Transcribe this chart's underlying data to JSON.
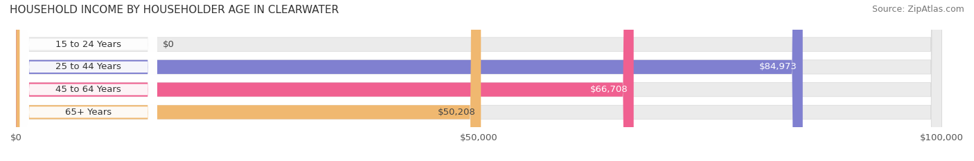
{
  "title": "HOUSEHOLD INCOME BY HOUSEHOLDER AGE IN CLEARWATER",
  "source_text": "Source: ZipAtlas.com",
  "categories": [
    "15 to 24 Years",
    "25 to 44 Years",
    "45 to 64 Years",
    "65+ Years"
  ],
  "values": [
    0,
    84973,
    66708,
    50208
  ],
  "bar_colors": [
    "#5ecfca",
    "#8080d0",
    "#f06090",
    "#f0b870"
  ],
  "label_colors": [
    "#444444",
    "#ffffff",
    "#ffffff",
    "#444444"
  ],
  "bar_background": "#ebebeb",
  "bar_bg_edge": "#d8d8d8",
  "xlim": [
    0,
    100000
  ],
  "xticks": [
    0,
    50000,
    100000
  ],
  "xtick_labels": [
    "$0",
    "$50,000",
    "$100,000"
  ],
  "figsize": [
    14.06,
    2.33
  ],
  "dpi": 100,
  "title_fontsize": 11,
  "label_fontsize": 9.5,
  "value_fontsize": 9.5,
  "source_fontsize": 9,
  "bar_height": 0.62,
  "bg_color": "#ffffff"
}
